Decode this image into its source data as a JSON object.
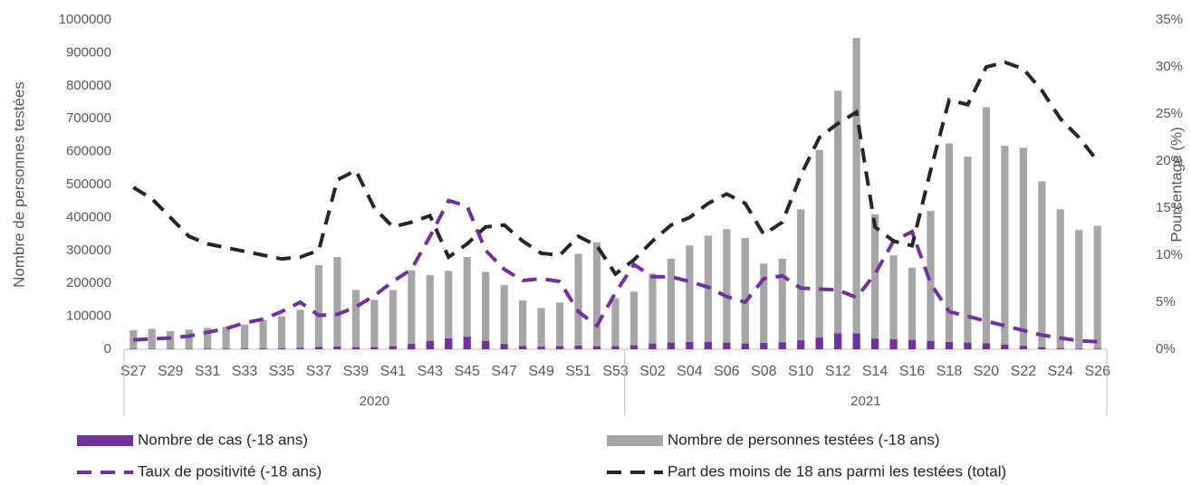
{
  "chart_data": {
    "type": "combo",
    "y_axis_label": "Nombre de personnes testées",
    "y2_axis_label": "Pourcentage (%)",
    "groups": [
      {
        "name": "2020",
        "categories": [
          "S27",
          null,
          "S29",
          null,
          "S31",
          null,
          "S33",
          null,
          "S35",
          null,
          "S37",
          null,
          "S39",
          null,
          "S41",
          null,
          "S43",
          null,
          "S45",
          null,
          "S47",
          null,
          "S49",
          null,
          "S51",
          null,
          "S53"
        ]
      },
      {
        "name": "2021",
        "categories": [
          null,
          "S02",
          null,
          "S04",
          null,
          "S06",
          null,
          "S08",
          null,
          "S10",
          null,
          "S12",
          null,
          "S14",
          null,
          "S16",
          null,
          "S18",
          null,
          "S20",
          null,
          "S22",
          null,
          "S24",
          null,
          "S26"
        ]
      }
    ],
    "ylim": [
      0,
      1000000
    ],
    "yticks": [
      0,
      100000,
      200000,
      300000,
      400000,
      500000,
      600000,
      700000,
      800000,
      900000,
      1000000
    ],
    "y2lim": [
      0,
      35
    ],
    "y2ticks": [
      {
        "value": 0,
        "label": "0%"
      },
      {
        "value": 5,
        "label": "5%"
      },
      {
        "value": 10,
        "label": "10%"
      },
      {
        "value": 15,
        "label": "15%"
      },
      {
        "value": 20,
        "label": "20%"
      },
      {
        "value": 25,
        "label": "25%"
      },
      {
        "value": 30,
        "label": "30%"
      },
      {
        "value": 35,
        "label": "35%"
      }
    ],
    "series": [
      {
        "name": "Nombre de personnes testées (-18 ans)",
        "type": "bar",
        "color": "#a6a6a6",
        "values": [
          58000,
          62000,
          55000,
          60000,
          65000,
          68000,
          75000,
          88000,
          100000,
          120000,
          255000,
          280000,
          180000,
          150000,
          180000,
          240000,
          225000,
          238000,
          280000,
          235000,
          195000,
          148000,
          125000,
          142000,
          290000,
          325000,
          155000,
          175000,
          230000,
          275000,
          315000,
          345000,
          365000,
          338000,
          260000,
          275000,
          425000,
          605000,
          785000,
          945000,
          410000,
          285000,
          248000,
          420000,
          625000,
          585000,
          735000,
          618000,
          612000,
          510000,
          425000,
          362000,
          375000
        ]
      },
      {
        "name": "Nombre de cas (-18 ans)",
        "type": "bar",
        "color": "#7030a0",
        "values": [
          1000,
          1000,
          1000,
          1000,
          1500,
          1500,
          2000,
          2500,
          3000,
          4000,
          7000,
          8000,
          6000,
          6000,
          9000,
          16000,
          25000,
          33000,
          38000,
          25000,
          16000,
          10000,
          8000,
          9000,
          11000,
          9000,
          9000,
          12000,
          17000,
          20000,
          22000,
          22000,
          20000,
          17000,
          19000,
          21000,
          27000,
          35000,
          48000,
          48000,
          32000,
          30000,
          28000,
          25000,
          22000,
          20000,
          18000,
          14000,
          10000,
          6000,
          3000,
          2000,
          2000
        ]
      },
      {
        "name": "Taux de positivité (-18 ans)",
        "type": "line",
        "axis": "y2",
        "color": "#7030a0",
        "values": [
          1.0,
          1.1,
          1.2,
          1.4,
          1.8,
          2.2,
          2.8,
          3.2,
          4.0,
          5.0,
          3.6,
          3.7,
          4.5,
          5.7,
          7.2,
          8.5,
          12.0,
          15.8,
          15.2,
          10.5,
          8.5,
          7.3,
          7.5,
          7.2,
          4.0,
          2.5,
          6.0,
          9.0,
          7.7,
          7.7,
          7.2,
          6.6,
          5.6,
          5.0,
          7.5,
          7.8,
          6.5,
          6.4,
          6.3,
          5.5,
          8.0,
          11.5,
          12.5,
          7.0,
          4.0,
          3.5,
          3.0,
          2.5,
          2.0,
          1.5,
          1.2,
          0.9,
          0.8
        ]
      },
      {
        "name": "Part des moins de 18 ans parmi les testées (total)",
        "type": "line",
        "axis": "y2",
        "color": "#262626",
        "values": [
          17.2,
          16.0,
          14.0,
          12.0,
          11.2,
          10.8,
          10.4,
          10.0,
          9.6,
          9.8,
          10.5,
          18.0,
          19.0,
          15.0,
          13.0,
          13.5,
          14.2,
          9.8,
          11.2,
          13.0,
          13.2,
          11.5,
          10.2,
          10.0,
          12.0,
          11.0,
          8.0,
          9.5,
          11.5,
          13.2,
          14.0,
          15.5,
          16.5,
          15.5,
          12.2,
          13.5,
          18.5,
          22.5,
          24.0,
          25.2,
          13.0,
          11.5,
          11.0,
          19.0,
          26.5,
          26.0,
          30.0,
          30.5,
          29.8,
          27.5,
          24.5,
          22.5,
          20.0
        ]
      }
    ]
  }
}
